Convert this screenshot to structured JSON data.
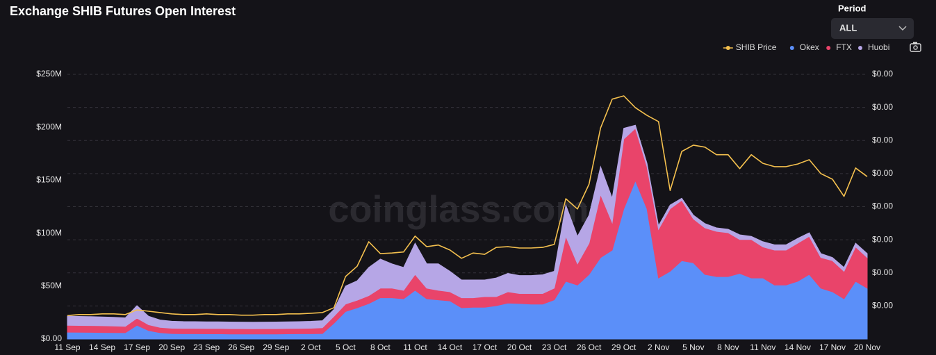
{
  "header": {
    "period_label": "Period",
    "period_value": "ALL"
  },
  "watermark": "coinglass.com",
  "chart_data": {
    "type": "area",
    "title": "Exchange SHIB Futures Open Interest",
    "categories": [
      "11 Sep",
      null,
      null,
      "14 Sep",
      null,
      null,
      "17 Sep",
      null,
      null,
      "20 Sep",
      null,
      null,
      "23 Sep",
      null,
      null,
      "26 Sep",
      null,
      null,
      "29 Sep",
      null,
      null,
      "2 Oct",
      null,
      null,
      "5 Oct",
      null,
      null,
      "8 Oct",
      null,
      null,
      "11 Oct",
      null,
      null,
      "14 Oct",
      null,
      null,
      "17 Oct",
      null,
      null,
      "20 Oct",
      null,
      null,
      "23 Oct",
      null,
      null,
      "26 Oct",
      null,
      null,
      "29 Oct",
      null,
      null,
      "2 Nov",
      null,
      null,
      "5 Nov",
      null,
      null,
      "8 Nov",
      null,
      null,
      "11 Nov",
      null,
      null,
      "14 Nov",
      null,
      null,
      "17 Nov",
      null,
      null,
      "20 Nov"
    ],
    "series": [
      {
        "name": "SHIB Price",
        "color": "#f4c04e",
        "axis": "y2",
        "type": "line",
        "values": [
          7.1e-06,
          7.4e-06,
          7.4e-06,
          7.6e-06,
          7.6e-06,
          7.4e-06,
          8.8e-06,
          8.4e-06,
          8e-06,
          7.6e-06,
          7.4e-06,
          7.4e-06,
          7.6e-06,
          7.4e-06,
          7.4e-06,
          7.2e-06,
          7.2e-06,
          7.4e-06,
          7.4e-06,
          7.6e-06,
          7.6e-06,
          7.8e-06,
          8e-06,
          9.5e-06,
          1.89e-05,
          2.2e-05,
          2.94e-05,
          2.58e-05,
          2.6e-05,
          2.63e-05,
          3.11e-05,
          2.79e-05,
          2.84e-05,
          2.69e-05,
          2.44e-05,
          2.6e-05,
          2.56e-05,
          2.77e-05,
          2.79e-05,
          2.75e-05,
          2.75e-05,
          2.77e-05,
          2.86e-05,
          4.24e-05,
          3.93e-05,
          4.68e-05,
          6.38e-05,
          7.25e-05,
          7.35e-05,
          6.99e-05,
          6.76e-05,
          6.57e-05,
          4.49e-05,
          5.67e-05,
          5.86e-05,
          5.8e-05,
          5.57e-05,
          5.57e-05,
          5.15e-05,
          5.57e-05,
          5.31e-05,
          5.21e-05,
          5.21e-05,
          5.29e-05,
          5.42e-05,
          5e-05,
          4.83e-05,
          4.31e-05,
          5.17e-05,
          4.91e-05
        ]
      },
      {
        "name": "Okex",
        "color": "#5b8ff9",
        "values": [
          6.5,
          6.4,
          6.3,
          6.2,
          6.1,
          6.0,
          13,
          8,
          6,
          5.2,
          5.0,
          5.0,
          4.9,
          5.0,
          4.8,
          4.8,
          4.7,
          4.8,
          4.8,
          4.9,
          5.0,
          5.0,
          5.2,
          15,
          26,
          29.5,
          33.5,
          39,
          39,
          38,
          46,
          38,
          37,
          36,
          29.5,
          30,
          30,
          31.5,
          34,
          33.5,
          33,
          33,
          37,
          54.5,
          51,
          61,
          77,
          84,
          123,
          149.6,
          123,
          57.7,
          64,
          74,
          72,
          61,
          59,
          59,
          62,
          57.7,
          57.7,
          51,
          51,
          54.5,
          61,
          48,
          44.6,
          38,
          54.5,
          48
        ]
      },
      {
        "name": "FTX",
        "color": "#e9446a",
        "values": [
          6.5,
          6.4,
          6.4,
          6.3,
          6.2,
          6.0,
          6.7,
          5.5,
          5,
          5,
          5,
          5,
          5,
          5,
          5,
          5,
          5,
          5,
          5,
          5,
          5,
          5.2,
          5.5,
          6.6,
          7,
          7.2,
          7.5,
          9,
          9,
          8,
          15,
          10,
          9,
          8.6,
          9.5,
          9,
          10,
          8.5,
          10.6,
          9.5,
          10,
          10,
          11,
          42.5,
          20,
          29.5,
          59.5,
          26,
          66,
          49.4,
          39.7,
          46,
          59,
          57,
          41.5,
          44,
          42.7,
          41.4,
          32,
          36.3,
          29.3,
          33,
          33,
          36,
          36,
          29,
          29.4,
          26,
          32.5,
          29
        ]
      },
      {
        "name": "Huobi",
        "color": "#b6a6e6",
        "values": [
          8.6,
          8.5,
          8.4,
          8.3,
          8.2,
          8.0,
          11.8,
          8,
          7,
          6.6,
          6.5,
          6.4,
          6.4,
          6.3,
          6.3,
          6.2,
          6.2,
          6.2,
          6.3,
          6.4,
          6.4,
          6.5,
          6.6,
          6.4,
          17,
          18.3,
          26.6,
          27.5,
          23,
          21.6,
          29.5,
          23,
          25,
          19.4,
          16.8,
          16.8,
          15.8,
          17.7,
          17.4,
          17,
          17,
          17.7,
          16,
          29.6,
          26,
          26.5,
          26.2,
          23,
          10,
          3,
          3.3,
          3.3,
          3.6,
          2,
          3.5,
          4,
          3.3,
          3.3,
          4.4,
          3,
          4.9,
          5,
          5,
          4.5,
          3.4,
          3.7,
          3,
          3.6,
          3.5,
          3.7
        ]
      }
    ],
    "ylim": [
      0,
      250
    ],
    "yticks": [
      {
        "value": 0,
        "label": "$0.00"
      },
      {
        "value": 50,
        "label": "$50M"
      },
      {
        "value": 100,
        "label": "$100M"
      },
      {
        "value": 150,
        "label": "$150M"
      },
      {
        "value": 200,
        "label": "$200M"
      },
      {
        "value": 250,
        "label": "$250M"
      }
    ],
    "y2lim": [
      0,
      8e-05
    ],
    "y2ticks": [
      {
        "value": 1e-05,
        "label": "$0.00"
      },
      {
        "value": 2e-05,
        "label": "$0.00"
      },
      {
        "value": 3e-05,
        "label": "$0.00"
      },
      {
        "value": 4e-05,
        "label": "$0.00"
      },
      {
        "value": 5e-05,
        "label": "$0.00"
      },
      {
        "value": 6e-05,
        "label": "$0.00"
      },
      {
        "value": 7e-05,
        "label": "$0.00"
      },
      {
        "value": 8e-05,
        "label": "$0.00"
      }
    ],
    "grid": "y2",
    "legend": "top-right"
  }
}
